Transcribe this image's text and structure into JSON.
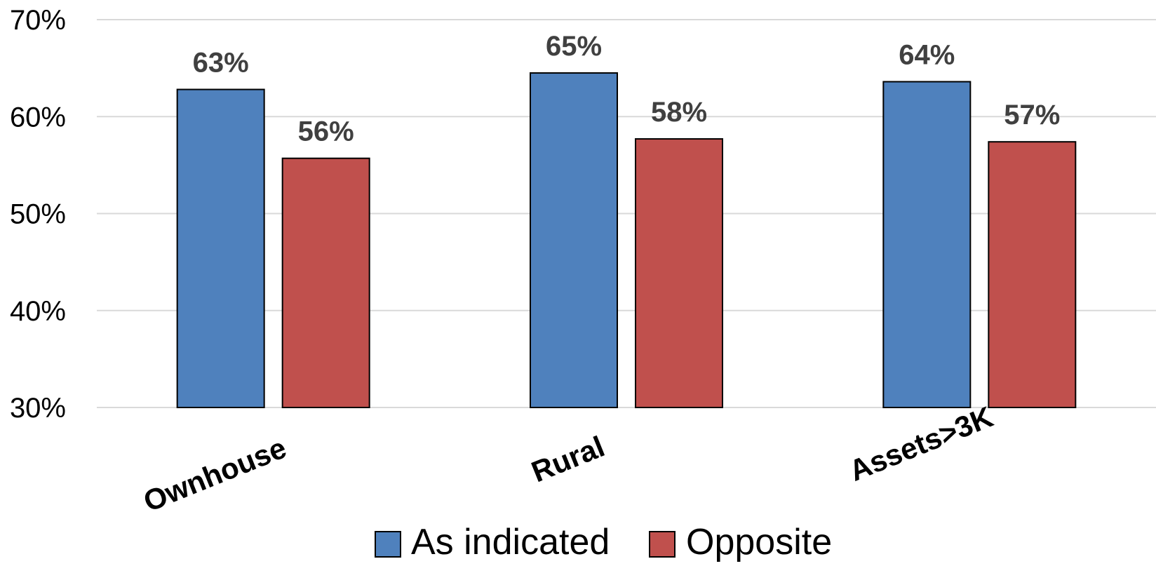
{
  "chart_data": {
    "type": "bar",
    "categories": [
      "Ownhouse",
      "Rural",
      "Assets>3K"
    ],
    "series": [
      {
        "name": "As indicated",
        "values": [
          62.8,
          64.5,
          63.6
        ],
        "labels": [
          "63%",
          "65%",
          "64%"
        ],
        "color": "#4f81bd"
      },
      {
        "name": "Opposite",
        "values": [
          55.7,
          57.7,
          57.4
        ],
        "labels": [
          "56%",
          "58%",
          "57%"
        ],
        "color": "#c0504d"
      }
    ],
    "ylim": [
      30,
      70
    ],
    "yticks": [
      30,
      40,
      50,
      60,
      70
    ],
    "ytick_labels": [
      "30%",
      "40%",
      "50%",
      "60%",
      "70%"
    ],
    "grid": true,
    "legend_position": "bottom"
  }
}
